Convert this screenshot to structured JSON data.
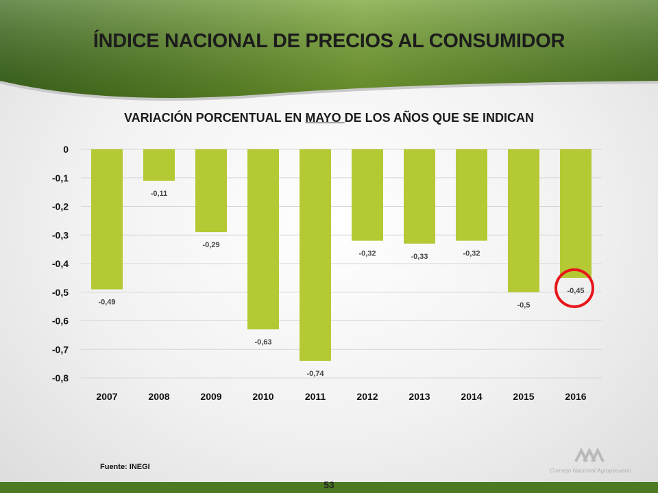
{
  "slide": {
    "title": "ÍNDICE NACIONAL DE PRECIOS AL CONSUMIDOR",
    "subtitle_pre": "VARIACIÓN PORCENTUAL EN ",
    "subtitle_highlight": "MAYO ",
    "subtitle_post": "DE LOS AÑOS QUE SE INDICAN",
    "source": "Fuente:  INEGI",
    "page_number": "53",
    "logo_text": "Consejo Nacional Agropecuario"
  },
  "colors": {
    "bar": "#b5c934",
    "header_dark": "#3f6b1c",
    "header_light": "#8eb43a",
    "highlight_circle": "#e8161b"
  },
  "chart_data": {
    "type": "bar",
    "categories": [
      "2007",
      "2008",
      "2009",
      "2010",
      "2011",
      "2012",
      "2013",
      "2014",
      "2015",
      "2016"
    ],
    "values": [
      -0.49,
      -0.11,
      -0.29,
      -0.63,
      -0.74,
      -0.32,
      -0.33,
      -0.32,
      -0.5,
      -0.45
    ],
    "value_labels": [
      "-0,49",
      "-0,11",
      "-0,29",
      "-0,63",
      "-0,74",
      "-0,32",
      "-0,33",
      "-0,32",
      "-0,5",
      "-0,45"
    ],
    "ylim": [
      -0.8,
      0
    ],
    "yticks": [
      0,
      -0.1,
      -0.2,
      -0.3,
      -0.4,
      -0.5,
      -0.6,
      -0.7,
      -0.8
    ],
    "ytick_labels": [
      "0",
      "-0,1",
      "-0,2",
      "-0,3",
      "-0,4",
      "-0,5",
      "-0,6",
      "-0,7",
      "-0,8"
    ],
    "highlighted_category": "2016",
    "grid": true,
    "legend": "none"
  }
}
